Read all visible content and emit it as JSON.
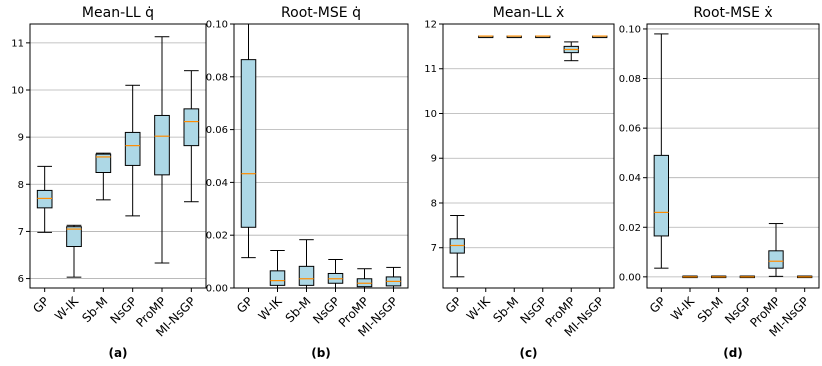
{
  "colors": {
    "box_fill": "#add8e6",
    "median": "#ff8c00",
    "grid": "#b0b0b0",
    "line": "#000000"
  },
  "chart_data": [
    {
      "type": "box",
      "title": "Mean-LL  q̇",
      "panel_label": "(a)",
      "categories": [
        "GP",
        "W-IK",
        "Sb-M",
        "NsGP",
        "ProMP",
        "MI-NsGP"
      ],
      "ylim": [
        5.8,
        11.4
      ],
      "yticks": [
        6,
        7,
        8,
        9,
        10,
        11
      ],
      "ytick_labels": [
        "6",
        "7",
        "8",
        "9",
        "10",
        "11"
      ],
      "grid": true,
      "boxes": [
        {
          "whislo": 6.98,
          "q1": 7.5,
          "med": 7.7,
          "q3": 7.87,
          "whishi": 8.38
        },
        {
          "whislo": 6.03,
          "q1": 6.68,
          "med": 7.05,
          "q3": 7.1,
          "whishi": 7.13
        },
        {
          "whislo": 7.67,
          "q1": 8.25,
          "med": 8.58,
          "q3": 8.64,
          "whishi": 8.66
        },
        {
          "whislo": 7.33,
          "q1": 8.4,
          "med": 8.82,
          "q3": 9.1,
          "whishi": 10.1
        },
        {
          "whislo": 6.33,
          "q1": 8.2,
          "med": 9.02,
          "q3": 9.46,
          "whishi": 11.13
        },
        {
          "whislo": 7.63,
          "q1": 8.82,
          "med": 9.33,
          "q3": 9.6,
          "whishi": 10.41
        }
      ]
    },
    {
      "type": "box",
      "title": "Root-MSE  q̇",
      "panel_label": "(b)",
      "categories": [
        "GP",
        "W-IK",
        "Sb-M",
        "NsGP",
        "ProMP",
        "MI-NsGP"
      ],
      "ylim": [
        0.0,
        0.1
      ],
      "yticks": [
        0.0,
        0.02,
        0.04,
        0.06,
        0.08,
        0.1
      ],
      "ytick_labels": [
        "0.00",
        "0.02",
        "0.04",
        "0.06",
        "0.08",
        "0.10"
      ],
      "grid": true,
      "boxes": [
        {
          "whislo": 0.0115,
          "q1": 0.023,
          "med": 0.0433,
          "q3": 0.0865,
          "whishi": 0.1
        },
        {
          "whislo": 0.0,
          "q1": 0.001,
          "med": 0.0028,
          "q3": 0.0065,
          "whishi": 0.0142
        },
        {
          "whislo": 0.0,
          "q1": 0.001,
          "med": 0.0035,
          "q3": 0.0082,
          "whishi": 0.0183
        },
        {
          "whislo": 0.0,
          "q1": 0.0018,
          "med": 0.0035,
          "q3": 0.0055,
          "whishi": 0.0108
        },
        {
          "whislo": 0.0,
          "q1": 0.0005,
          "med": 0.0018,
          "q3": 0.0035,
          "whishi": 0.0073
        },
        {
          "whislo": 0.0,
          "q1": 0.0008,
          "med": 0.0025,
          "q3": 0.0042,
          "whishi": 0.0078
        }
      ]
    },
    {
      "type": "box",
      "title": "Mean-LL  ẋ",
      "panel_label": "(c)",
      "categories": [
        "GP",
        "W-IK",
        "Sb-M",
        "NsGP",
        "ProMP",
        "MI-NsGP"
      ],
      "ylim": [
        6.1,
        12.0
      ],
      "yticks": [
        7,
        8,
        9,
        10,
        11,
        12
      ],
      "ytick_labels": [
        "7",
        "8",
        "9",
        "10",
        "11",
        "12"
      ],
      "grid": true,
      "boxes": [
        {
          "whislo": 6.35,
          "q1": 6.88,
          "med": 7.05,
          "q3": 7.2,
          "whishi": 7.72
        },
        {
          "whislo": 11.73,
          "q1": 11.73,
          "med": 11.73,
          "q3": 11.73,
          "whishi": 11.73
        },
        {
          "whislo": 11.73,
          "q1": 11.73,
          "med": 11.73,
          "q3": 11.73,
          "whishi": 11.73
        },
        {
          "whislo": 11.73,
          "q1": 11.73,
          "med": 11.73,
          "q3": 11.73,
          "whishi": 11.73
        },
        {
          "whislo": 11.18,
          "q1": 11.36,
          "med": 11.43,
          "q3": 11.5,
          "whishi": 11.6
        },
        {
          "whislo": 11.73,
          "q1": 11.73,
          "med": 11.73,
          "q3": 11.73,
          "whishi": 11.73
        }
      ]
    },
    {
      "type": "box",
      "title": "Root-MSE  ẋ",
      "panel_label": "(d)",
      "categories": [
        "GP",
        "W-IK",
        "Sb-M",
        "NsGP",
        "ProMP",
        "MI-NsGP"
      ],
      "ylim": [
        -0.0045,
        0.102
      ],
      "yticks": [
        0.0,
        0.02,
        0.04,
        0.06,
        0.08,
        0.1
      ],
      "ytick_labels": [
        "0.00",
        "0.02",
        "0.04",
        "0.06",
        "0.08",
        "0.10"
      ],
      "grid": true,
      "boxes": [
        {
          "whislo": 0.0035,
          "q1": 0.0165,
          "med": 0.026,
          "q3": 0.049,
          "whishi": 0.098
        },
        {
          "whislo": 0.0,
          "q1": 0.0,
          "med": 0.0,
          "q3": 0.0003,
          "whishi": 0.0003
        },
        {
          "whislo": 0.0,
          "q1": 0.0,
          "med": 0.0,
          "q3": 0.0003,
          "whishi": 0.0003
        },
        {
          "whislo": 0.0,
          "q1": 0.0,
          "med": 0.0,
          "q3": 0.0003,
          "whishi": 0.0003
        },
        {
          "whislo": 0.0002,
          "q1": 0.0035,
          "med": 0.0063,
          "q3": 0.0105,
          "whishi": 0.0215
        },
        {
          "whislo": 0.0,
          "q1": 0.0,
          "med": 0.0,
          "q3": 0.0003,
          "whishi": 0.0003
        }
      ]
    }
  ]
}
